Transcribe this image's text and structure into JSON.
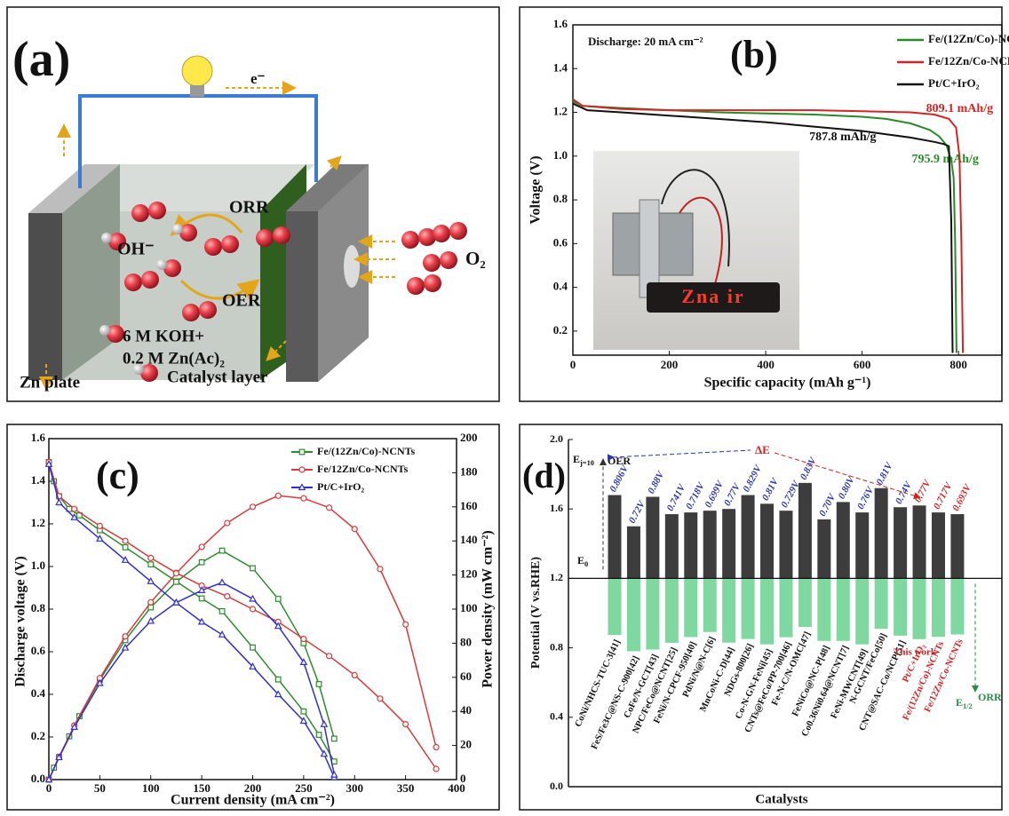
{
  "panel_a": {
    "label": "(a)",
    "electron": "e⁻",
    "orr": "ORR",
    "hydroxide": "OH⁻",
    "oer": "OER",
    "oxygen": "O₂",
    "electrolyte_line1": "6 M KOH+",
    "electrolyte_line2": "0.2 M Zn(Ac)₂",
    "zn_plate": "Zn plate",
    "catalyst_layer": "Catalyst layer"
  },
  "chart_data": [
    {
      "type": "line",
      "panel_label": "(b)",
      "annotation": "Discharge: 20 mA cm⁻²",
      "inset_display": "Zna ir",
      "xlabel": "Specific capacity (mAh g⁻¹)",
      "ylabel": "Voltage (V)",
      "xlim": [
        0,
        890
      ],
      "ylim": [
        0.09,
        1.6
      ],
      "xticks": [
        0,
        200,
        400,
        600,
        800
      ],
      "yticks": [
        0.2,
        0.4,
        0.6,
        0.8,
        {
          "value": 1.0,
          "label": "1.0"
        },
        1.2,
        1.4,
        1.6
      ],
      "legend": "upper right",
      "series": [
        {
          "name": "Fe/(12Zn/Co)-NCNTs",
          "color": "#2a8a2a",
          "x": [
            0,
            20,
            100,
            200,
            300,
            400,
            500,
            600,
            650,
            700,
            740,
            760,
            775,
            785,
            790,
            793,
            795.9
          ],
          "values": [
            1.25,
            1.23,
            1.22,
            1.21,
            1.2,
            1.195,
            1.19,
            1.18,
            1.17,
            1.15,
            1.12,
            1.09,
            1.05,
            0.98,
            0.9,
            0.6,
            0.1
          ],
          "capacity": 795.9,
          "capacity_label": "795.9 mAh/g"
        },
        {
          "name": "Fe/12Zn/Co-NCNTs",
          "color": "#d42424",
          "x": [
            0,
            20,
            100,
            200,
            300,
            400,
            500,
            600,
            700,
            750,
            780,
            795,
            802,
            806,
            809.1
          ],
          "values": [
            1.26,
            1.23,
            1.215,
            1.21,
            1.21,
            1.21,
            1.21,
            1.205,
            1.2,
            1.19,
            1.17,
            1.13,
            1.0,
            0.6,
            0.1
          ],
          "capacity": 809.1,
          "capacity_label": "809.1 mAh/g"
        },
        {
          "name": "Pt/C+IrO₂",
          "color": "#111111",
          "x": [
            0,
            30,
            100,
            200,
            300,
            400,
            500,
            600,
            650,
            700,
            750,
            770,
            780,
            785,
            787.8
          ],
          "values": [
            1.24,
            1.21,
            1.2,
            1.185,
            1.17,
            1.155,
            1.135,
            1.115,
            1.1,
            1.085,
            1.065,
            1.055,
            1.045,
            0.7,
            0.1
          ],
          "capacity": 787.8,
          "capacity_label": "787.8 mAh/g"
        }
      ]
    },
    {
      "type": "dual-line",
      "panel_label": "(c)",
      "xlabel": "Current density (mA cm⁻²)",
      "ylabel": "Discharge voltage (V)",
      "y2label": "Power density (mW cm⁻²)",
      "xlim": [
        0,
        400
      ],
      "ylim": [
        0,
        1.6
      ],
      "y2lim": [
        0,
        200
      ],
      "xticks": [
        0,
        50,
        100,
        150,
        200,
        250,
        300,
        350,
        400
      ],
      "yticks": [
        {
          "value": 0,
          "label": "0.0"
        },
        0.2,
        0.4,
        0.6,
        0.8,
        {
          "value": 1.0,
          "label": "1.0"
        },
        1.2,
        1.4,
        1.6
      ],
      "y2ticks": [
        0,
        20,
        40,
        60,
        80,
        100,
        120,
        140,
        160,
        180,
        200
      ],
      "legend": "upper right",
      "series": [
        {
          "name": "Fe/(12Zn/Co)-NCNTs",
          "color": "#2c8c2c",
          "marker": "square",
          "x": [
            0,
            5,
            10,
            20,
            30,
            50,
            75,
            100,
            125,
            150,
            170,
            200,
            225,
            250,
            265,
            280
          ],
          "values": [
            1.49,
            1.4,
            1.33,
            1.27,
            1.24,
            1.17,
            1.09,
            1.01,
            0.93,
            0.85,
            0.79,
            0.62,
            0.47,
            0.32,
            0.21,
            0.085
          ],
          "y2_values": [
            0,
            7,
            13.3,
            25.4,
            37.2,
            58.5,
            81.8,
            101,
            116,
            127.5,
            134.3,
            124,
            106,
            80,
            56,
            24
          ]
        },
        {
          "name": "Fe/12Zn/Co-NCNTs",
          "color": "#d93a3a",
          "marker": "circle",
          "x": [
            0,
            10,
            25,
            50,
            75,
            100,
            125,
            150,
            175,
            200,
            225,
            250,
            275,
            300,
            325,
            350,
            380
          ],
          "values": [
            1.49,
            1.33,
            1.27,
            1.19,
            1.12,
            1.04,
            0.97,
            0.91,
            0.86,
            0.8,
            0.74,
            0.66,
            0.58,
            0.49,
            0.38,
            0.26,
            0.05
          ],
          "y2_values": [
            0,
            13.3,
            31.8,
            59.5,
            84,
            104,
            121,
            136.5,
            150.5,
            160,
            166.5,
            165,
            159.5,
            147,
            123.5,
            91,
            19
          ]
        },
        {
          "name": "Pt/C+IrO₂",
          "color": "#2f2fd0",
          "marker": "triangle",
          "x": [
            0,
            10,
            25,
            50,
            75,
            100,
            125,
            150,
            170,
            200,
            225,
            250,
            270,
            280
          ],
          "values": [
            1.48,
            1.3,
            1.23,
            1.13,
            1.03,
            0.93,
            0.83,
            0.74,
            0.68,
            0.53,
            0.4,
            0.275,
            0.12,
            0.01
          ],
          "y2_values": [
            0,
            13,
            30.8,
            56.5,
            77.3,
            93,
            103.8,
            111,
            115.6,
            106,
            90,
            68.8,
            32.4,
            2.8
          ]
        }
      ]
    },
    {
      "type": "bar",
      "panel_label": "(d)",
      "ylabel": "Potential (V vs.RHE)",
      "xlabel": "Catalysts",
      "ylim": [
        0,
        2.0
      ],
      "yticks": [
        {
          "value": 0,
          "label": "0.0"
        },
        0.4,
        0.8,
        1.2,
        1.6,
        {
          "value": 2.0,
          "label": "2.0"
        }
      ],
      "baseline": 1.2,
      "onset_label": {
        "text": "E",
        "sub": "j=10"
      },
      "e0_label": {
        "text": "E",
        "sub": "0"
      },
      "delta_e": "ΔE",
      "this_work": "This work",
      "half_wave_label": {
        "text": "E",
        "sub": "1/2"
      },
      "categories": [
        "CoNi/NHCS-TUC-3[41]",
        "FeS/Fe3C@NS-C-900[42]",
        "CoFe/N-GCT[43]",
        "NPC/FeCo@NCNT[25]",
        "FeNi/N-CPCF-950[40]",
        "PdNi/N@N-C[6]",
        "MnCoNi-C-D[44]",
        "NDGs-800[26]",
        "Co-N-GN-FeNi[45]",
        "CNTs@FeCo/PP-700[46]",
        "Fe-N-C/N-OMC[47]",
        "FeNiCo@NC-P[48]",
        "Co0.36Ni0.64@NCNT[7]",
        "FeNi-MWCNT[49]",
        "N-GCNT/FeCo[50]",
        "CNT@SAC-Co/NCP[51]",
        "Pt/C+IrO₂",
        "Fe/(12Zn/Co)-NCNTs",
        "Fe/12Zn/Co-NCNTs"
      ],
      "category_colors": [
        "#111",
        "#111",
        "#111",
        "#111",
        "#111",
        "#111",
        "#111",
        "#111",
        "#111",
        "#111",
        "#111",
        "#111",
        "#111",
        "#111",
        "#111",
        "#111",
        "#d42020",
        "#d42020",
        "#d42020"
      ],
      "delta_labels": [
        "0.806V",
        "0.72V",
        "0.88V",
        "0.741V",
        "0.718V",
        "0.699V",
        "0.77V",
        "0.829V",
        "0.81V",
        "0.729V",
        "0.83V",
        "0.70V",
        "0.80V",
        "0.76V",
        "0.81V",
        "0.74V",
        "0.77V",
        "0.717V",
        "0.693V"
      ],
      "delta_label_colors": [
        "#2a35b0",
        "#2a35b0",
        "#2a35b0",
        "#2a35b0",
        "#2a35b0",
        "#2a35b0",
        "#2a35b0",
        "#2a35b0",
        "#2a35b0",
        "#2a35b0",
        "#2a35b0",
        "#2a35b0",
        "#2a35b0",
        "#2a35b0",
        "#2a35b0",
        "#2a35b0",
        "#d42020",
        "#d42020",
        "#d42020"
      ],
      "series": [
        {
          "name": "OER",
          "color": "#3d3d3d",
          "values": [
            1.68,
            1.5,
            1.67,
            1.57,
            1.58,
            1.59,
            1.6,
            1.68,
            1.63,
            1.59,
            1.75,
            1.54,
            1.64,
            1.58,
            1.72,
            1.61,
            1.62,
            1.58,
            1.57
          ]
        },
        {
          "name": "ORR",
          "color": "#7fd8a0",
          "values": [
            0.874,
            0.78,
            0.79,
            0.829,
            0.862,
            0.891,
            0.83,
            0.851,
            0.82,
            0.861,
            0.92,
            0.84,
            0.84,
            0.82,
            0.91,
            0.87,
            0.85,
            0.863,
            0.877
          ]
        }
      ]
    }
  ]
}
